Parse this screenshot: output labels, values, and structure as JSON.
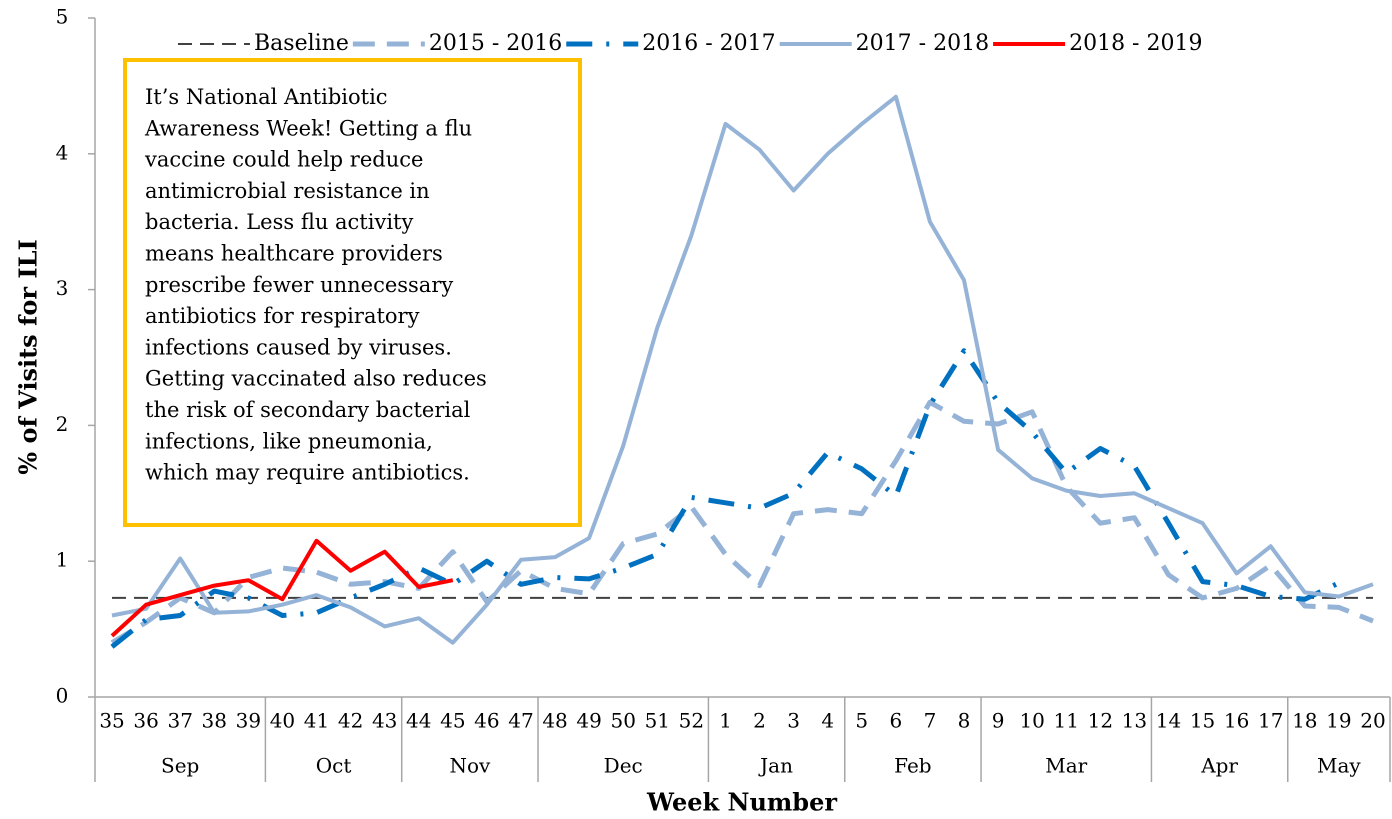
{
  "chart_data": {
    "type": "line",
    "y_label": "% of Visits for ILI",
    "x_label": "Week Number",
    "categories": [
      "35",
      "36",
      "37",
      "38",
      "39",
      "40",
      "41",
      "42",
      "43",
      "44",
      "45",
      "46",
      "47",
      "48",
      "49",
      "50",
      "51",
      "52",
      "1",
      "2",
      "3",
      "4",
      "5",
      "6",
      "7",
      "8",
      "9",
      "10",
      "11",
      "12",
      "13",
      "14",
      "15",
      "16",
      "17",
      "18",
      "19",
      "20"
    ],
    "months": [
      "Sep",
      null,
      null,
      null,
      null,
      "Oct",
      null,
      null,
      null,
      "Nov",
      null,
      null,
      null,
      "Dec",
      null,
      null,
      null,
      null,
      "Jan",
      null,
      null,
      null,
      "Feb",
      null,
      null,
      null,
      "Mar",
      null,
      null,
      null,
      null,
      "Apr",
      null,
      null,
      null,
      "May",
      null,
      null
    ],
    "ylim": [
      0,
      5
    ],
    "yticks": [
      0,
      1,
      2,
      3,
      4,
      5
    ],
    "series": [
      {
        "name": "Baseline",
        "color": "#404040",
        "style": "dashed",
        "width": 2,
        "values": [
          0.73,
          0.73,
          0.73,
          0.73,
          0.73,
          0.73,
          0.73,
          0.73,
          0.73,
          0.73,
          0.73,
          0.73,
          0.73,
          0.73,
          0.73,
          0.73,
          0.73,
          0.73,
          0.73,
          0.73,
          0.73,
          0.73,
          0.73,
          0.73,
          0.73,
          0.73,
          0.73,
          0.73,
          0.73,
          0.73,
          0.73,
          0.73,
          0.73,
          0.73,
          0.73,
          0.73,
          0.73,
          0.73
        ]
      },
      {
        "name": "2015 - 2016",
        "color": "#95b3d7",
        "style": "dashed",
        "width": 5,
        "values": [
          0.4,
          0.55,
          0.73,
          0.62,
          0.88,
          0.95,
          0.92,
          0.83,
          0.85,
          0.8,
          1.07,
          0.7,
          0.93,
          0.8,
          0.76,
          1.13,
          1.2,
          1.4,
          1.05,
          0.82,
          1.35,
          1.38,
          1.35,
          1.74,
          2.17,
          2.03,
          2.01,
          2.1,
          1.55,
          1.28,
          1.32,
          0.9,
          0.73,
          0.8,
          0.97,
          0.67,
          0.66,
          0.56
        ]
      },
      {
        "name": "2016 - 2017",
        "color": "#0070c0",
        "style": "dashdot",
        "width": 5,
        "values": [
          0.37,
          0.57,
          0.6,
          0.78,
          0.73,
          0.6,
          0.62,
          0.73,
          0.83,
          0.95,
          0.83,
          1.0,
          0.83,
          0.88,
          0.87,
          0.95,
          1.05,
          1.47,
          1.43,
          1.39,
          1.5,
          1.8,
          1.68,
          1.48,
          2.15,
          2.55,
          2.17,
          1.95,
          1.65,
          1.83,
          1.7,
          1.28,
          0.85,
          0.82,
          0.74,
          0.72,
          0.84,
          null
        ]
      },
      {
        "name": "2017 - 2018",
        "color": "#95b3d7",
        "style": "solid",
        "width": 4,
        "values": [
          0.6,
          0.65,
          1.02,
          0.62,
          0.63,
          0.68,
          0.75,
          0.66,
          0.52,
          0.58,
          0.4,
          0.68,
          1.01,
          1.03,
          1.17,
          1.85,
          2.72,
          3.4,
          4.22,
          4.03,
          3.73,
          4.0,
          4.22,
          4.42,
          3.5,
          3.07,
          1.82,
          1.61,
          1.52,
          1.48,
          1.5,
          1.39,
          1.28,
          0.91,
          1.11,
          0.77,
          0.74,
          0.83
        ]
      },
      {
        "name": "2018 - 2019",
        "color": "#ff0000",
        "style": "solid",
        "width": 4,
        "values": [
          0.45,
          0.68,
          0.75,
          0.82,
          0.86,
          0.72,
          1.15,
          0.93,
          1.07,
          0.81,
          0.86,
          null,
          null,
          null,
          null,
          null,
          null,
          null,
          null,
          null,
          null,
          null,
          null,
          null,
          null,
          null,
          null,
          null,
          null,
          null,
          null,
          null,
          null,
          null,
          null,
          null,
          null,
          null
        ]
      }
    ],
    "annotation": {
      "lines": [
        "It’s National Antibiotic",
        "Awareness Week! Getting a flu",
        "vaccine could help reduce",
        "antimicrobial resistance in",
        "bacteria. Less flu activity",
        "means healthcare providers",
        "prescribe fewer unnecessary",
        "antibiotics for respiratory",
        "infections caused by viruses.",
        "Getting vaccinated also reduces",
        "the risk of secondary bacterial",
        "infections, like pneumonia,",
        "which may require antibiotics."
      ],
      "border_color": "#ffc000"
    }
  }
}
